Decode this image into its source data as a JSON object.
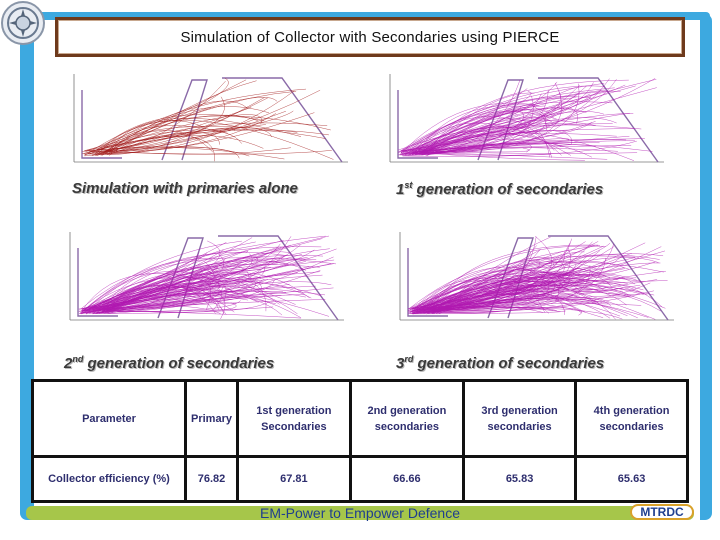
{
  "slide": {
    "title": "Simulation of Collector with Secondaries using PIERCE",
    "footer_tagline": "EM-Power to Empower Defence",
    "footer_badge": "MTRDC",
    "logo_icon": "drdo-emblem-icon"
  },
  "colors": {
    "frame": "#3da9e0",
    "bottom_bar": "#a6c64a",
    "primaries_trace": "#a01818",
    "secondaries_trace": "#b018b0",
    "title_border": "#6e3a1c"
  },
  "panels": [
    {
      "caption_pre": "Simulation with primaries alone",
      "caption_sup": "",
      "caption_post": "",
      "trace": "primaries"
    },
    {
      "caption_pre": "1",
      "caption_sup": "st",
      "caption_post": " generation of secondaries",
      "trace": "secondaries"
    },
    {
      "caption_pre": "2",
      "caption_sup": "nd",
      "caption_post": " generation of secondaries",
      "trace": "secondaries"
    },
    {
      "caption_pre": "3",
      "caption_sup": "rd",
      "caption_post": " generation of secondaries",
      "trace": "secondaries"
    }
  ],
  "table": {
    "header": [
      "Parameter",
      "Primary",
      "1st generation Secondaries",
      "2nd generation secondaries",
      "3rd generation secondaries",
      "4th generation secondaries"
    ],
    "rows": [
      [
        "Collector efficiency (%)",
        "76.82",
        "67.81",
        "66.66",
        "65.83",
        "65.63"
      ]
    ]
  },
  "chart_data": {
    "type": "table",
    "columns": [
      "Parameter",
      "Primary",
      "1st generation Secondaries",
      "2nd generation secondaries",
      "3rd generation secondaries",
      "4th generation secondaries"
    ],
    "rows": [
      [
        "Collector efficiency (%)",
        76.82,
        67.81,
        66.66,
        65.83,
        65.63
      ]
    ]
  }
}
